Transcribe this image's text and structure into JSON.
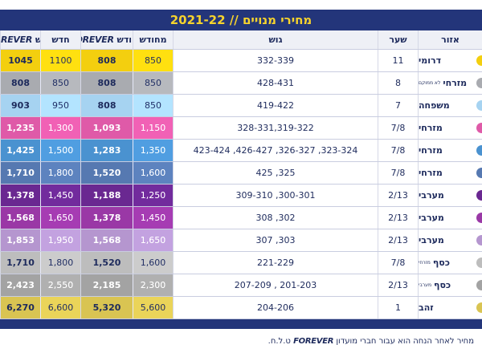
{
  "header": {
    "title": "מחירי מנויים // 2021-22"
  },
  "table": {
    "columns": {
      "zone": "אזור",
      "gate": "שער",
      "block": "גוש",
      "renew": "מחודש",
      "renew_forever": {
        "label": "מחודש",
        "brand": "FOREVER"
      },
      "new": "חדש",
      "new_forever": {
        "label": "חדש",
        "brand": "FOREVER"
      }
    },
    "rows": [
      {
        "zone": "דרומי",
        "gate": "11",
        "block": "332-339",
        "renew": "850",
        "renew_forever": "808",
        "new": "1100",
        "new_forever": "1045",
        "color": "#f3cf0f"
      },
      {
        "zone": "מזרחי",
        "sub": "לא ממוקם",
        "gate": "8",
        "block": "428-431",
        "renew": "850",
        "renew_forever": "808",
        "new": "850",
        "new_forever": "808",
        "color": "#a9abb0"
      },
      {
        "zone": "משפחה",
        "gate": "7",
        "block": "419-422",
        "renew": "850",
        "renew_forever": "808",
        "new": "950",
        "new_forever": "903",
        "color": "#a6d3f1"
      },
      {
        "zone": "מזרחי",
        "gate": "7/8",
        "block": "328-331,319-322",
        "renew": "1,150",
        "renew_forever": "1,093",
        "new": "1,300",
        "new_forever": "1,235",
        "color": "#df5aa8"
      },
      {
        "zone": "מזרחי",
        "gate": "7/8",
        "block": "423-424 ,426-427 ,326-327 ,323-324",
        "renew": "1,350",
        "renew_forever": "1,283",
        "new": "1,500",
        "new_forever": "1,425",
        "color": "#4a92d0"
      },
      {
        "zone": "מזרחי",
        "gate": "7/8",
        "block": "425 ,325",
        "renew": "1,600",
        "renew_forever": "1,520",
        "new": "1,800",
        "new_forever": "1,710",
        "color": "#5679b1"
      },
      {
        "zone": "מערבי",
        "gate": "2/13",
        "block": "309-310 ,300-301",
        "renew": "1,250",
        "renew_forever": "1,188",
        "new": "1,450",
        "new_forever": "1,378",
        "color": "#6a2891"
      },
      {
        "zone": "מערבי",
        "gate": "2/13",
        "block": "308 ,302",
        "renew": "1,450",
        "renew_forever": "1,378",
        "new": "1,650",
        "new_forever": "1,568",
        "color": "#9a38a6"
      },
      {
        "zone": "מערבי",
        "gate": "2/13",
        "block": "307 ,303",
        "renew": "1,650",
        "renew_forever": "1,568",
        "new": "1,950",
        "new_forever": "1,853",
        "color": "#b596cf"
      },
      {
        "zone": "כסף",
        "sub": "מזרחי",
        "gate": "7/8",
        "block": "221-229",
        "renew": "1,600",
        "renew_forever": "1,520",
        "new": "1,800",
        "new_forever": "1,710",
        "color": "#bdbdbd"
      },
      {
        "zone": "כסף",
        "sub": "מערבי",
        "gate": "2/13",
        "block": "207-209 , 201-203",
        "renew": "2,300",
        "renew_forever": "2,185",
        "new": "2,550",
        "new_forever": "2,423",
        "color": "#a3a3a3"
      },
      {
        "zone": "זהב",
        "gate": "1",
        "block": "204-206",
        "renew": "5,600",
        "renew_forever": "5,320",
        "new": "6,600",
        "new_forever": "6,270",
        "color": "#d9c452"
      }
    ]
  },
  "footer": {
    "text": "מחיר לאחר הנחה הוא עבור חברי מועדון",
    "brand": "FOREVER",
    "suffix": "ט.ל.ח."
  }
}
